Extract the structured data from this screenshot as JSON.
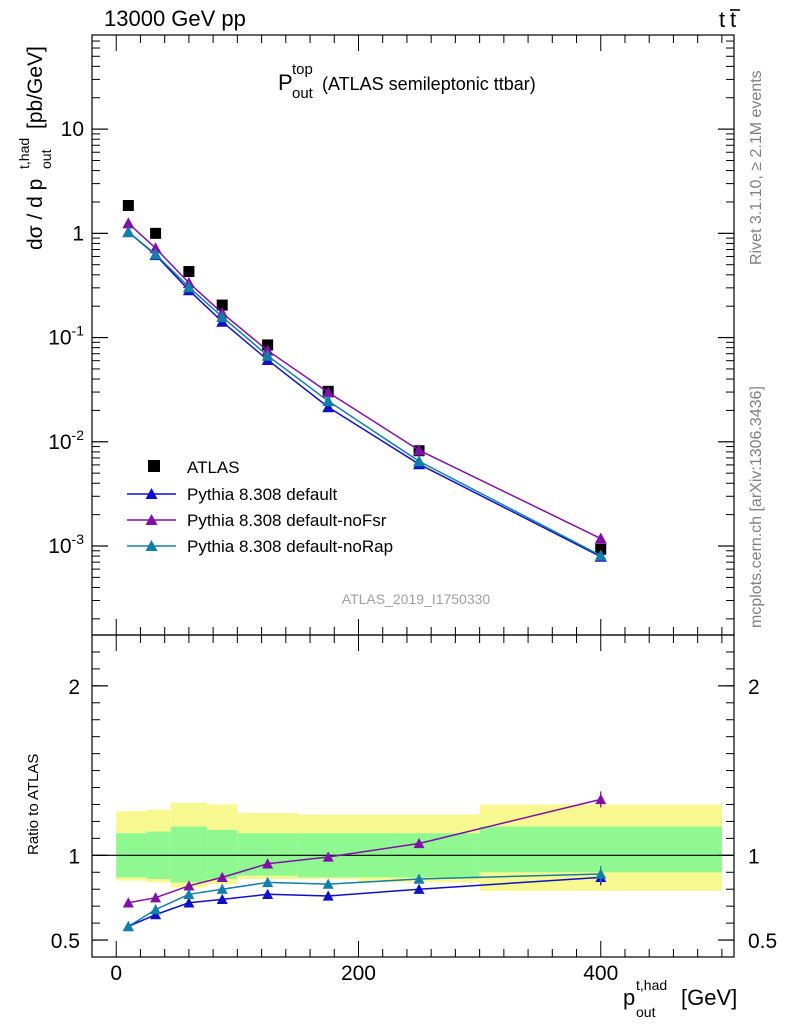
{
  "header": {
    "energy": "13000 GeV pp",
    "process_main": "t",
    "process_bar": "t",
    "title_main": "P",
    "title_sup": "top",
    "title_sub": "out",
    "title_rest": "(ATLAS semileptonic ttbar)",
    "analysis_id": "ATLAS_2019_I1750330",
    "side_rivet": "Rivet 3.1.10, ≥ 2.1M events",
    "side_mcplots": "mcplots.cern.ch [arXiv:1306.3436]"
  },
  "axes": {
    "ylabel_main": "dσ / d p",
    "ylabel_sup": "t,had",
    "ylabel_sub": "out",
    "ylabel_unit": "[pb/GeV]",
    "ylabel_ratio": "Ratio to ATLAS",
    "xlabel_main": "p",
    "xlabel_sup": "t,had",
    "xlabel_sub": "out",
    "xlabel_unit": "[GeV]"
  },
  "colors": {
    "data": "#000000",
    "default": "#1010c8",
    "noFsr": "#8010a8",
    "noRap": "#1080a8",
    "band_inner": "#90f890",
    "band_outer": "#f8f890"
  },
  "chart_data": [
    {
      "type": "scatter",
      "panel": "main",
      "yscale": "log",
      "xlim": [
        -20,
        510
      ],
      "ylim": [
        0.00014,
        80
      ],
      "y_ticklabels": [
        {
          "base": "10",
          "exp": "-3"
        },
        {
          "base": "10",
          "exp": "-2"
        },
        {
          "base": "10",
          "exp": "-1"
        },
        {
          "base": "1",
          "exp": ""
        },
        {
          "base": "10",
          "exp": ""
        }
      ],
      "y_tickvalues": [
        0.001,
        0.01,
        0.1,
        1,
        10
      ],
      "x": [
        10,
        32.5,
        60,
        87.5,
        125,
        175,
        250,
        400
      ],
      "series": [
        {
          "name": "ATLAS",
          "key": "data",
          "marker": "square",
          "values": [
            1.85,
            1.0,
            0.43,
            0.205,
            0.085,
            0.0305,
            0.0082,
            0.00093
          ]
        },
        {
          "name": "Pythia 8.308 default",
          "key": "default",
          "marker": "triangle",
          "values": [
            1.03,
            0.62,
            0.285,
            0.142,
            0.061,
            0.0215,
            0.0061,
            0.00079
          ]
        },
        {
          "name": "Pythia 8.308 default-noFsr",
          "key": "noFsr",
          "marker": "triangle",
          "values": [
            1.25,
            0.72,
            0.335,
            0.172,
            0.075,
            0.0298,
            0.0083,
            0.00118
          ]
        },
        {
          "name": "Pythia 8.308 default-noRap",
          "key": "noRap",
          "marker": "triangle",
          "values": [
            1.03,
            0.63,
            0.305,
            0.158,
            0.067,
            0.0246,
            0.0065,
            0.00081
          ]
        }
      ]
    },
    {
      "type": "line",
      "panel": "ratio",
      "xlim": [
        -20,
        510
      ],
      "ylim": [
        0.4,
        2.3
      ],
      "x_ticks": [
        0,
        200,
        400
      ],
      "x_ticklabels": [
        "0",
        "200",
        "400"
      ],
      "y_ticks": [
        0.5,
        1,
        2
      ],
      "y_ticklabels": [
        "0.5",
        "1",
        "2"
      ],
      "x": [
        10,
        32.5,
        60,
        87.5,
        125,
        175,
        250,
        400
      ],
      "bins": [
        [
          0,
          25
        ],
        [
          25,
          45
        ],
        [
          45,
          75
        ],
        [
          75,
          100
        ],
        [
          100,
          150
        ],
        [
          150,
          200
        ],
        [
          200,
          300
        ],
        [
          300,
          500
        ]
      ],
      "band_inner": [
        [
          0.87,
          1.13
        ],
        [
          0.86,
          1.14
        ],
        [
          0.84,
          1.17
        ],
        [
          0.86,
          1.15
        ],
        [
          0.88,
          1.13
        ],
        [
          0.87,
          1.13
        ],
        [
          0.87,
          1.13
        ],
        [
          0.9,
          1.17
        ]
      ],
      "band_outer": [
        [
          0.85,
          1.26
        ],
        [
          0.84,
          1.27
        ],
        [
          0.81,
          1.31
        ],
        [
          0.83,
          1.3
        ],
        [
          0.86,
          1.25
        ],
        [
          0.86,
          1.24
        ],
        [
          0.84,
          1.24
        ],
        [
          0.79,
          1.3
        ]
      ],
      "series": [
        {
          "name": "Pythia 8.308 default",
          "key": "default",
          "marker": "triangle",
          "values": [
            0.58,
            0.65,
            0.72,
            0.74,
            0.77,
            0.76,
            0.8,
            0.87
          ]
        },
        {
          "name": "Pythia 8.308 default-noFsr",
          "key": "noFsr",
          "marker": "triangle",
          "values": [
            0.72,
            0.75,
            0.82,
            0.87,
            0.95,
            0.99,
            1.07,
            1.33
          ]
        },
        {
          "name": "Pythia 8.308 default-noRap",
          "key": "noRap",
          "marker": "triangle",
          "values": [
            0.58,
            0.68,
            0.77,
            0.8,
            0.84,
            0.83,
            0.86,
            0.89
          ]
        }
      ]
    }
  ]
}
